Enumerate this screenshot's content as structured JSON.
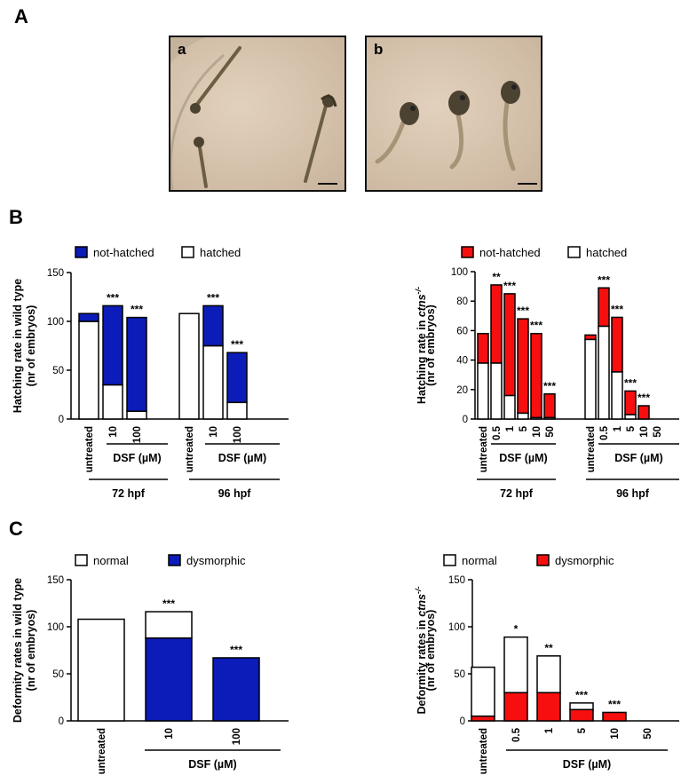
{
  "panels": {
    "A": "A",
    "B": "B",
    "C": "C"
  },
  "photos": {
    "a": "a",
    "b": "b"
  },
  "colors": {
    "blue": "#0c1cb8",
    "red": "#f70f0f",
    "white": "#ffffff",
    "black": "#000000"
  },
  "chart_data": [
    {
      "id": "B-wt",
      "type": "bar",
      "stacked": true,
      "ylabel": "Hatching rate in wild type\n(nr of embryos)",
      "ylim": [
        0,
        150
      ],
      "yticks": [
        0,
        50,
        100,
        150
      ],
      "legend": [
        {
          "name": "not-hatched",
          "color": "#0c1cb8"
        },
        {
          "name": "hatched",
          "color": "#ffffff"
        }
      ],
      "categories": [
        "untreated",
        "10",
        "100",
        "untreated",
        "10",
        "100"
      ],
      "groups": [
        "72 hpf",
        "96 hpf"
      ],
      "group_sublabel": "DSF (µM)",
      "series": [
        {
          "name": "hatched",
          "values": [
            100,
            35,
            8,
            108,
            75,
            17
          ]
        },
        {
          "name": "not-hatched",
          "values": [
            8,
            81,
            96,
            0,
            41,
            51
          ]
        }
      ],
      "significance": [
        "",
        "***",
        "***",
        "",
        "***",
        "***"
      ]
    },
    {
      "id": "B-ctns",
      "type": "bar",
      "stacked": true,
      "ylabel": "Hatching rate in ctns-/-\n(nr of embryos)",
      "ylim": [
        0,
        100
      ],
      "yticks": [
        0,
        20,
        40,
        60,
        80,
        100
      ],
      "legend": [
        {
          "name": "not-hatched",
          "color": "#f70f0f"
        },
        {
          "name": "hatched",
          "color": "#ffffff"
        }
      ],
      "categories": [
        "untreated",
        "0.5",
        "1",
        "5",
        "10",
        "50",
        "untreated",
        "0.5",
        "1",
        "5",
        "10",
        "50"
      ],
      "groups": [
        "72 hpf",
        "96 hpf"
      ],
      "group_sublabel": "DSF (µM)",
      "series": [
        {
          "name": "hatched",
          "values": [
            38,
            38,
            16,
            4,
            1,
            1,
            54,
            63,
            32,
            3,
            0,
            0
          ]
        },
        {
          "name": "not-hatched",
          "values": [
            20,
            53,
            69,
            64,
            57,
            16,
            3,
            26,
            37,
            16,
            9,
            0
          ]
        }
      ],
      "significance": [
        "",
        "**",
        "***",
        "***",
        "***",
        "***",
        "",
        "***",
        "***",
        "***",
        "***",
        ""
      ]
    },
    {
      "id": "C-wt",
      "type": "bar",
      "stacked": true,
      "ylabel": "Deformity rates in wild type\n(nr of embryos)",
      "ylim": [
        0,
        150
      ],
      "yticks": [
        0,
        50,
        100,
        150
      ],
      "legend": [
        {
          "name": "normal",
          "color": "#ffffff"
        },
        {
          "name": "dysmorphic",
          "color": "#0c1cb8"
        }
      ],
      "categories": [
        "untreated",
        "10",
        "100"
      ],
      "group_sublabel": "DSF (µM)",
      "series": [
        {
          "name": "dysmorphic",
          "values": [
            0,
            88,
            67
          ]
        },
        {
          "name": "normal",
          "values": [
            108,
            28,
            0
          ]
        }
      ],
      "significance": [
        "",
        "***",
        "***"
      ]
    },
    {
      "id": "C-ctns",
      "type": "bar",
      "stacked": true,
      "ylabel": "Deformity rates in ctns-/-\n(nr of embryos)",
      "ylim": [
        0,
        150
      ],
      "yticks": [
        0,
        50,
        100,
        150
      ],
      "legend": [
        {
          "name": "normal",
          "color": "#ffffff"
        },
        {
          "name": "dysmorphic",
          "color": "#f70f0f"
        }
      ],
      "categories": [
        "untreated",
        "0.5",
        "1",
        "5",
        "10",
        "50"
      ],
      "group_sublabel": "DSF (µM)",
      "series": [
        {
          "name": "dysmorphic",
          "values": [
            5,
            30,
            30,
            12,
            9,
            0
          ]
        },
        {
          "name": "normal",
          "values": [
            52,
            59,
            39,
            7,
            0,
            0
          ]
        }
      ],
      "significance": [
        "",
        "*",
        "**",
        "***",
        "***",
        ""
      ]
    }
  ]
}
